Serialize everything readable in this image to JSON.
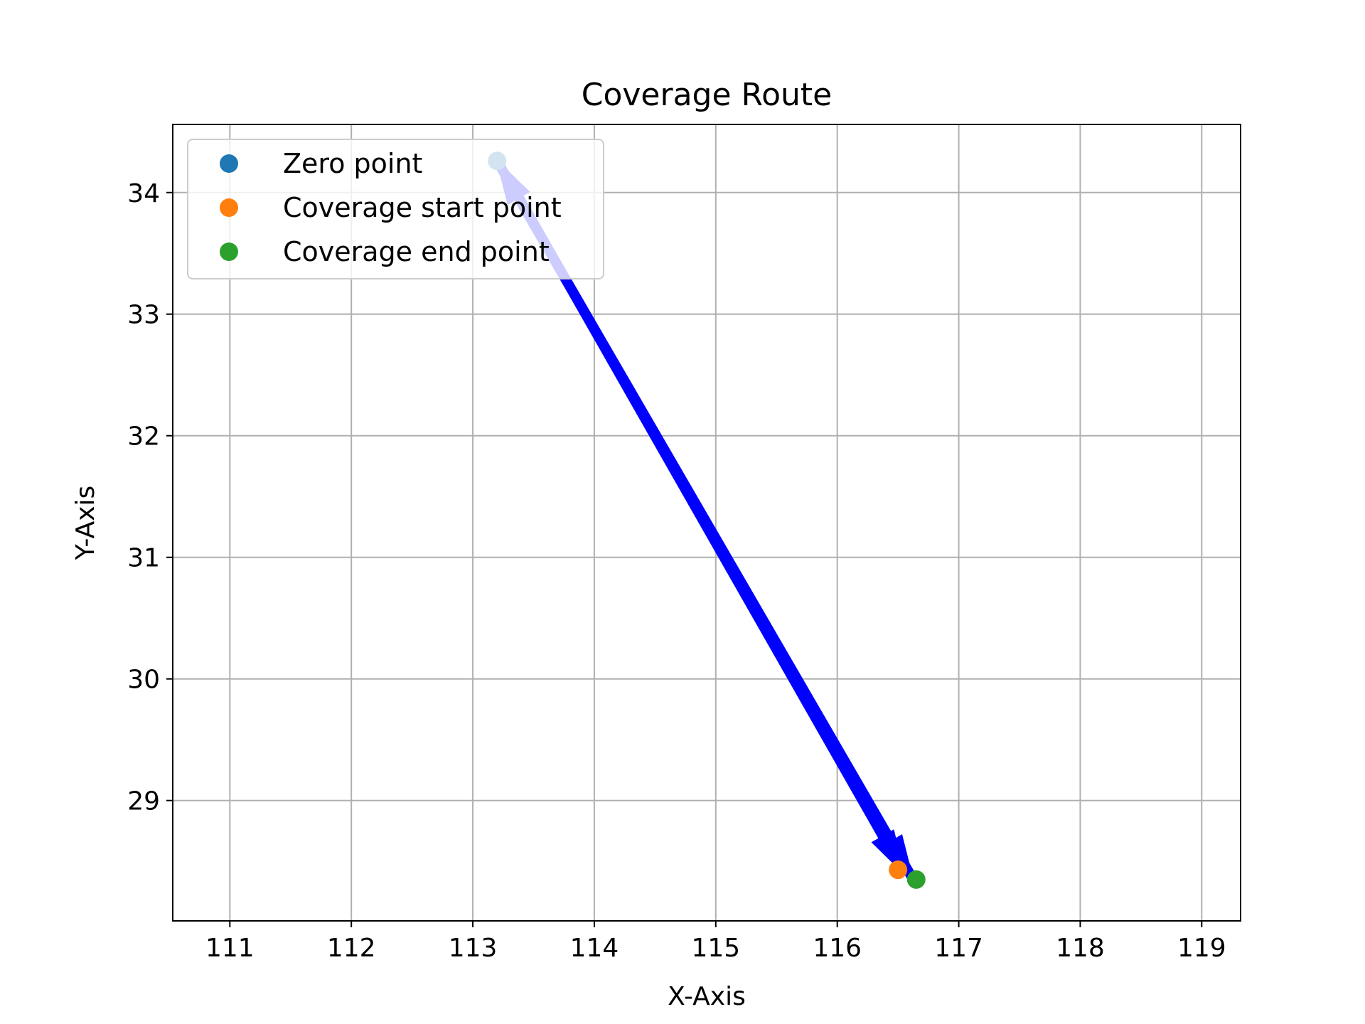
{
  "chart_data": {
    "type": "scatter",
    "title": "Coverage Route",
    "xlabel": "X-Axis",
    "ylabel": "Y-Axis",
    "xlim": [
      110.53,
      119.32
    ],
    "ylim": [
      28.01,
      34.56
    ],
    "xticks": [
      111,
      112,
      113,
      114,
      115,
      116,
      117,
      118,
      119
    ],
    "yticks": [
      29,
      30,
      31,
      32,
      33,
      34
    ],
    "grid": true,
    "legend_position": "upper-left",
    "series": [
      {
        "name": "Zero point",
        "color": "#1f77b4",
        "points": [
          [
            113.2,
            34.26
          ]
        ]
      },
      {
        "name": "Coverage start point",
        "color": "#ff7f0e",
        "points": [
          [
            116.5,
            28.43
          ]
        ]
      },
      {
        "name": "Coverage end point",
        "color": "#2ca02c",
        "points": [
          [
            116.65,
            28.35
          ]
        ]
      }
    ],
    "route_arrows": [
      {
        "from": [
          113.2,
          34.26
        ],
        "to": [
          116.62,
          28.36
        ],
        "color": "#0000ff"
      },
      {
        "from": [
          116.62,
          28.36
        ],
        "to": [
          113.2,
          34.26
        ],
        "color": "#0000ff"
      },
      {
        "from": [
          113.3,
          34.1
        ],
        "to": [
          116.55,
          28.4
        ],
        "color": "#0000ff"
      }
    ]
  }
}
